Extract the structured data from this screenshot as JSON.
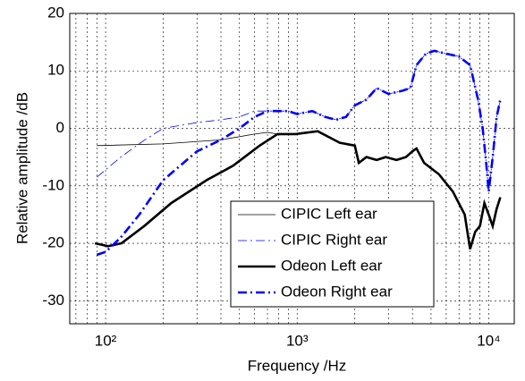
{
  "chart_data": {
    "type": "line",
    "xlabel": "Frequency /Hz",
    "ylabel": "Relative amplitude /dB",
    "xscale": "log",
    "xlim": [
      65,
      13600
    ],
    "ylim": [
      -34,
      20
    ],
    "xticks": [
      {
        "value": 100,
        "label": "10²"
      },
      {
        "value": 1000,
        "label": "10³"
      },
      {
        "value": 10000,
        "label": "10⁴"
      }
    ],
    "yticks": [
      20,
      10,
      0,
      -10,
      -20,
      -30
    ],
    "grid": true,
    "minor_grid": true,
    "legend": true,
    "series": [
      {
        "name": "CIPIC Left ear",
        "color": "#000000",
        "linewidth": 0.8,
        "style": "solid",
        "x": [
          90,
          200,
          400,
          600,
          700,
          790,
          980,
          1280,
          1670,
          2000,
          2100,
          2300,
          2600,
          2900,
          3300,
          3700,
          4000,
          4200,
          4600,
          5500,
          6500,
          7500,
          8000,
          8500,
          9000,
          9500,
          10000,
          10500,
          11000,
          11500
        ],
        "values": [
          -3,
          -2.7,
          -2,
          -1,
          -0.7,
          -1,
          -1,
          -0.5,
          -2.5,
          -3,
          -6,
          -5,
          -5.5,
          -5,
          -5.5,
          -5,
          -4,
          -3.5,
          -6,
          -8,
          -11,
          -15,
          -21,
          -18,
          -17,
          -13,
          -15,
          -17,
          -14,
          -12
        ]
      },
      {
        "name": "CIPIC Right ear",
        "color": "#0000ff",
        "linewidth": 0.8,
        "style": "dashdot",
        "x": [
          90,
          120,
          160,
          200,
          300,
          400,
          500,
          600,
          700,
          900,
          1000,
          1200,
          1400,
          1600,
          1800,
          2000,
          2300,
          2600,
          3000,
          3500,
          3900,
          4200,
          4700,
          5200,
          6000,
          7000,
          8000,
          8800,
          9300,
          9700,
          10000,
          10500,
          11000,
          11500
        ],
        "values": [
          -8.5,
          -5,
          -2,
          0,
          1,
          1.5,
          2,
          3,
          3,
          3,
          2.5,
          3,
          2,
          1.5,
          2,
          4,
          5,
          7,
          6,
          6.5,
          7,
          11,
          13,
          13.5,
          13,
          12.5,
          11,
          5,
          0,
          -6,
          -11,
          -5,
          2,
          5
        ]
      },
      {
        "name": "Odeon Left ear",
        "color": "#000000",
        "linewidth": 2.6,
        "style": "solid",
        "x": [
          88,
          103,
          121,
          159,
          220,
          337,
          463,
          637,
          790,
          980,
          1280,
          1670,
          2000,
          2100,
          2300,
          2600,
          2900,
          3300,
          3700,
          4000,
          4200,
          4600,
          5500,
          6500,
          7500,
          8000,
          8500,
          9000,
          9500,
          10000,
          10500,
          11000,
          11500
        ],
        "values": [
          -20,
          -20.5,
          -20,
          -17,
          -13,
          -9,
          -6.5,
          -3,
          -1,
          -1,
          -0.5,
          -2.5,
          -3,
          -6,
          -5,
          -5.5,
          -5,
          -5.5,
          -5,
          -4,
          -3.5,
          -6,
          -8,
          -11,
          -15,
          -21,
          -18,
          -17,
          -13,
          -15,
          -17,
          -14,
          -12
        ]
      },
      {
        "name": "Odeon Right ear",
        "color": "#0000ff",
        "linewidth": 2.6,
        "style": "dashdot",
        "x": [
          90,
          100,
          120,
          150,
          200,
          300,
          400,
          500,
          600,
          700,
          900,
          1000,
          1200,
          1400,
          1600,
          1800,
          2000,
          2300,
          2600,
          3000,
          3500,
          3900,
          4200,
          4700,
          5200,
          6000,
          7000,
          8000,
          8800,
          9300,
          9700,
          10000,
          10500,
          11000,
          11500
        ],
        "values": [
          -22,
          -21.5,
          -19,
          -15,
          -9,
          -4,
          -2,
          0,
          2,
          3,
          3,
          2.5,
          3,
          2,
          1.5,
          2,
          4,
          5,
          7,
          6,
          6.5,
          7,
          11,
          13,
          13.5,
          13,
          12.5,
          11,
          5,
          0,
          -6,
          -11,
          -5,
          2,
          5
        ]
      }
    ]
  }
}
